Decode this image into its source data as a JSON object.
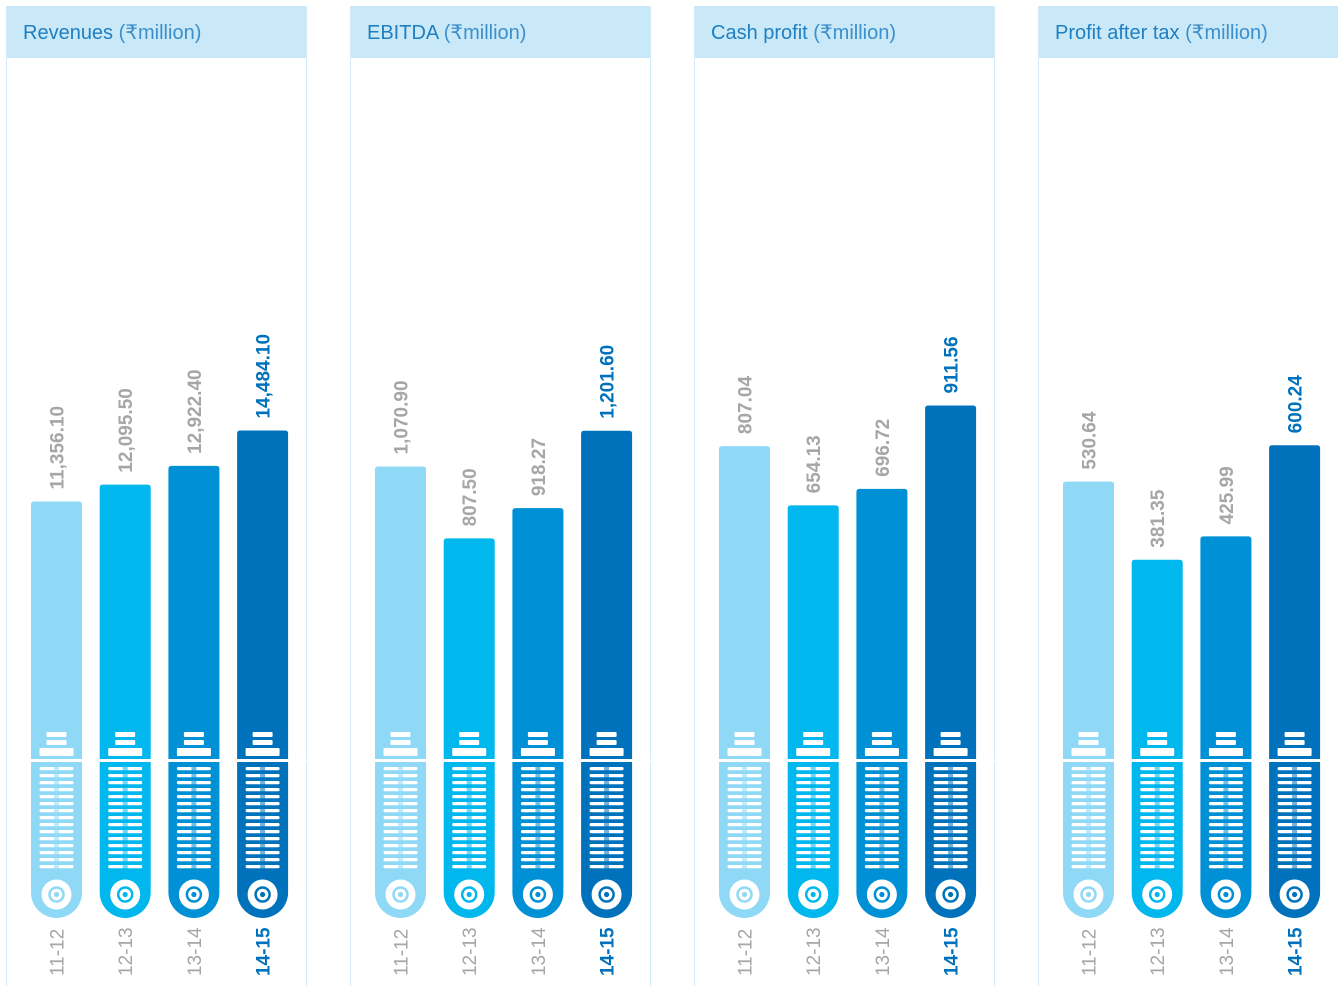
{
  "colors": [
    "#8fd8f6",
    "#00b7ee",
    "#0090d6",
    "#0072bc"
  ],
  "label_colors": [
    "#a6a6a6",
    "#a6a6a6",
    "#a6a6a6",
    "#0072bc"
  ],
  "chart_data": [
    {
      "type": "bar",
      "title": "Revenues",
      "unit": "(₹million)",
      "categories": [
        "11-12",
        "12-13",
        "13-14",
        "14-15"
      ],
      "values": [
        11356.1,
        12095.5,
        12922.4,
        14484.1
      ],
      "labels": [
        "11,356.10",
        "12,095.50",
        "12,922.40",
        "14,484.10"
      ],
      "ylim": [
        0,
        26500
      ]
    },
    {
      "type": "bar",
      "title": "EBITDA",
      "unit": "(₹million)",
      "categories": [
        "11-12",
        "12-13",
        "13-14",
        "14-15"
      ],
      "values": [
        1070.9,
        807.5,
        918.27,
        1201.6
      ],
      "labels": [
        "1,070.90",
        "807.50",
        "918.27",
        "1,201.60"
      ],
      "ylim": [
        0,
        2200
      ]
    },
    {
      "type": "bar",
      "title": "Cash profit",
      "unit": "(₹million)",
      "categories": [
        "11-12",
        "12-13",
        "13-14",
        "14-15"
      ],
      "values": [
        807.04,
        654.13,
        696.72,
        911.56
      ],
      "labels": [
        "807.04",
        "654.13",
        "696.72",
        "911.56"
      ],
      "ylim": [
        0,
        1550
      ]
    },
    {
      "type": "bar",
      "title": "Profit after tax",
      "unit": "(₹million)",
      "categories": [
        "11-12",
        "12-13",
        "13-14",
        "14-15"
      ],
      "values": [
        530.64,
        381.35,
        425.99,
        600.24
      ],
      "labels": [
        "530.64",
        "381.35",
        "425.99",
        "600.24"
      ],
      "ylim": [
        0,
        1150
      ]
    }
  ]
}
